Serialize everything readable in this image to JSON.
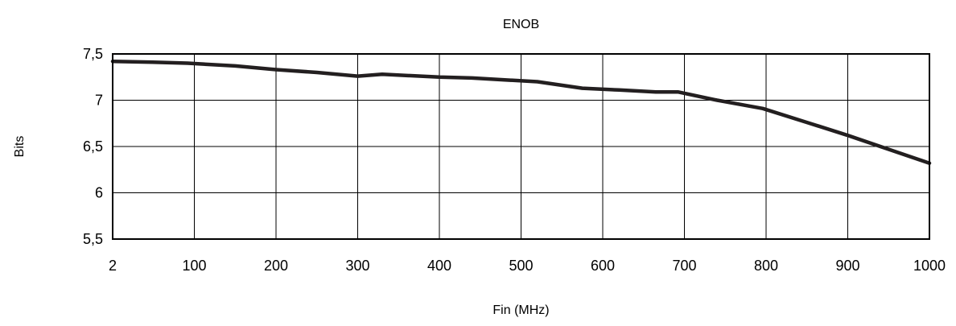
{
  "chart_data": {
    "type": "line",
    "title": "ENOB",
    "xlabel": "Fin (MHz)",
    "ylabel": "Bits",
    "x_ticks": [
      2,
      100,
      200,
      300,
      400,
      500,
      600,
      700,
      800,
      900,
      1000
    ],
    "x_tick_labels": [
      "2",
      "100",
      "200",
      "300",
      "400",
      "500",
      "600",
      "700",
      "800",
      "900",
      "1000"
    ],
    "y_ticks": [
      5.5,
      6,
      6.5,
      7,
      7.5
    ],
    "y_tick_labels": [
      "5,5",
      "6",
      "6,5",
      "7",
      "7,5"
    ],
    "xlim": [
      2,
      1000
    ],
    "ylim": [
      5.5,
      7.5
    ],
    "grid": true,
    "series": [
      {
        "color": "#231f20",
        "x": [
          2,
          50,
          92,
          150,
          200,
          250,
          300,
          330,
          400,
          440,
          480,
          520,
          575,
          620,
          665,
          692,
          740,
          796,
          850,
          900,
          950,
          1000
        ],
        "y": [
          7.42,
          7.41,
          7.4,
          7.37,
          7.33,
          7.3,
          7.26,
          7.28,
          7.25,
          7.24,
          7.22,
          7.2,
          7.13,
          7.11,
          7.09,
          7.09,
          7.0,
          6.91,
          6.76,
          6.62,
          6.47,
          6.32
        ]
      }
    ]
  }
}
